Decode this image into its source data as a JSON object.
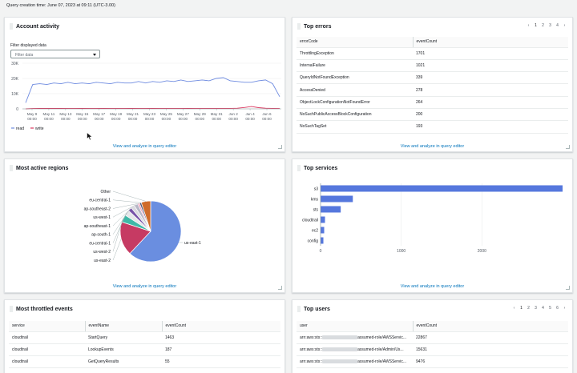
{
  "query_info": "Query creation time: June 07, 2023 at 09:11 (UTC-3.00)",
  "link_label": "View and analyze in query editor",
  "colors": {
    "accent": "#0073bb",
    "bar": "#5577dd",
    "read": "#6e8be0",
    "write": "#d9365e"
  },
  "account_activity": {
    "title": "Account activity",
    "filter_label": "Filter displayed data",
    "filter_placeholder": "Filter data",
    "chart_data": {
      "type": "line",
      "x_ticks": [
        [
          "May 9",
          "00:00"
        ],
        [
          "May 11",
          "00:00"
        ],
        [
          "May 13",
          "00:00"
        ],
        [
          "May 15",
          "00:00"
        ],
        [
          "May 17",
          "00:00"
        ],
        [
          "May 19",
          "00:00"
        ],
        [
          "May 21",
          "00:00"
        ],
        [
          "May 23",
          "00:00"
        ],
        [
          "May 25",
          "00:00"
        ],
        [
          "May 27",
          "00:00"
        ],
        [
          "May 29",
          "00:00"
        ],
        [
          "May 31",
          "00:00"
        ],
        [
          "Jun 2",
          "00:00"
        ],
        [
          "Jun 4",
          "00:00"
        ],
        [
          "Jun 6",
          "00:00"
        ]
      ],
      "y_ticks": [
        "30K",
        "20K",
        "10K",
        "0"
      ],
      "ylim": [
        0,
        30000
      ],
      "series": [
        {
          "name": "read",
          "values": [
            4000,
            16000,
            16500,
            16000,
            17000,
            16500,
            17500,
            16500,
            17000,
            16500,
            17500,
            17000,
            16500,
            17500,
            17000,
            17000,
            18000,
            17000,
            18000,
            17500,
            18500,
            18000,
            19000,
            18000,
            18500,
            19000,
            18500,
            20000,
            20500,
            18500,
            18000,
            17500,
            17500,
            18500,
            19000,
            16500,
            8000
          ]
        },
        {
          "name": "write",
          "values": [
            0,
            200,
            300,
            250,
            300,
            250,
            300,
            300,
            250,
            300,
            300,
            250,
            300,
            300,
            300,
            250,
            300,
            300,
            250,
            300,
            300,
            300,
            300,
            250,
            300,
            300,
            300,
            300,
            300,
            300,
            400,
            900,
            1500,
            800,
            400,
            300,
            200
          ]
        }
      ]
    }
  },
  "top_errors": {
    "title": "Top errors",
    "pages": [
      "1",
      "2",
      "3",
      "4"
    ],
    "columns": [
      "errorCode",
      "eventCount"
    ],
    "rows": [
      [
        "ThrottlingException",
        "1701"
      ],
      [
        "InternalFailure",
        "1021"
      ],
      [
        "QueryIdNotFoundException",
        "339"
      ],
      [
        "AccessDenied",
        "278"
      ],
      [
        "ObjectLockConfigurationNotFoundError",
        "264"
      ],
      [
        "NoSuchPublicAccessBlockConfiguration",
        "200"
      ],
      [
        "NoSuchTagSet",
        "193"
      ]
    ]
  },
  "active_regions": {
    "title": "Most active regions",
    "chart_data": {
      "type": "pie",
      "labels": [
        "us-east-1",
        "us-east-2",
        "us-west-2",
        "eu-central-1",
        "ap-south-1",
        "ap-southeast-1",
        "us-west-1",
        "ap-southeast-2",
        "eu-central-1",
        "Other"
      ],
      "values": [
        62,
        18,
        4,
        3,
        2,
        2,
        2,
        1,
        1,
        5
      ],
      "colors": [
        "#6a8ee0",
        "#c63a63",
        "#3fb8a7",
        "#e6e7ea",
        "#7752a8",
        "#d9d9df",
        "#b7b7c7",
        "#f0a2b9",
        "#4f5d7e",
        "#cf6c2b"
      ]
    }
  },
  "top_services": {
    "title": "Top services",
    "chart_data": {
      "type": "bar",
      "orientation": "horizontal",
      "categories": [
        "s3",
        "kms",
        "sts",
        "cloudtrail",
        "ec2",
        "config"
      ],
      "values": [
        3000,
        400,
        250,
        55,
        45,
        35
      ],
      "x_ticks": [
        "0",
        "1000",
        "2000"
      ],
      "xlim": [
        0,
        3000
      ]
    }
  },
  "throttled_events": {
    "title": "Most throttled events",
    "columns": [
      "service",
      "eventName",
      "eventCount"
    ],
    "rows": [
      [
        "cloudtrail",
        "StartQuery",
        "1463"
      ],
      [
        "cloudtrail",
        "LookupEvents",
        "187"
      ],
      [
        "cloudtrail",
        "GetQueryResults",
        "55"
      ]
    ]
  },
  "top_users": {
    "title": "Top users",
    "pages": [
      "1",
      "2",
      "3",
      "4",
      "5",
      "6"
    ],
    "columns": [
      "user",
      "eventCount"
    ],
    "rows": [
      [
        "arn:aws:sts::",
        "assumed-role/AWSServic...",
        "22867"
      ],
      [
        "arn:aws:sts::",
        "assumed-role/Admin/Us...",
        "15631"
      ],
      [
        "arn:aws:sts::",
        "assumed-role/AWSServic...",
        "9476"
      ]
    ]
  }
}
